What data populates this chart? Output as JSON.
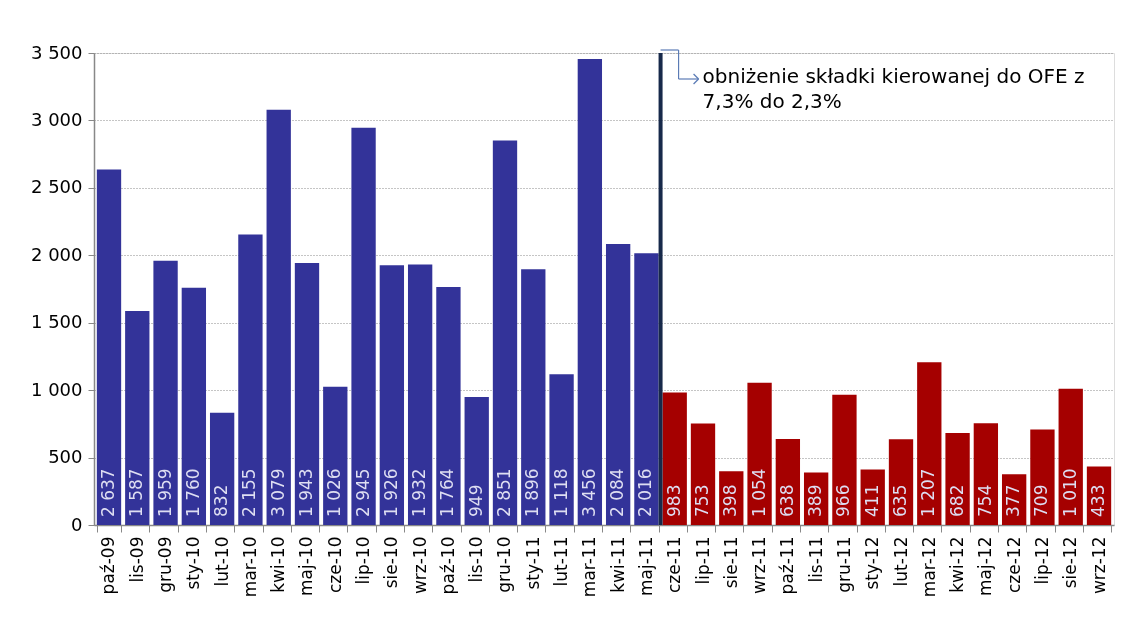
{
  "chart_data": {
    "type": "bar",
    "categories": [
      "paź-09",
      "lis-09",
      "gru-09",
      "sty-10",
      "lut-10",
      "mar-10",
      "kwi-10",
      "maj-10",
      "cze-10",
      "lip-10",
      "sie-10",
      "wrz-10",
      "paź-10",
      "lis-10",
      "gru-10",
      "sty-11",
      "lut-11",
      "mar-11",
      "kwi-11",
      "maj-11",
      "cze-11",
      "lip-11",
      "sie-11",
      "wrz-11",
      "paź-11",
      "lis-11",
      "gru-11",
      "sty-12",
      "lut-12",
      "mar-12",
      "kwi-12",
      "maj-12",
      "cze-12",
      "lip-12",
      "sie-12",
      "wrz-12"
    ],
    "values": [
      2637,
      1587,
      1959,
      1760,
      832,
      2155,
      3079,
      1943,
      1026,
      2945,
      1926,
      1932,
      1764,
      949,
      2851,
      1896,
      1118,
      3456,
      2084,
      2016,
      983,
      753,
      398,
      1054,
      638,
      389,
      966,
      411,
      635,
      1207,
      682,
      754,
      377,
      709,
      1010,
      433
    ],
    "colors": [
      "#333399",
      "#333399",
      "#333399",
      "#333399",
      "#333399",
      "#333399",
      "#333399",
      "#333399",
      "#333399",
      "#333399",
      "#333399",
      "#333399",
      "#333399",
      "#333399",
      "#333399",
      "#333399",
      "#333399",
      "#333399",
      "#333399",
      "#333399",
      "#a50000",
      "#a50000",
      "#a50000",
      "#a50000",
      "#a50000",
      "#a50000",
      "#a50000",
      "#a50000",
      "#a50000",
      "#a50000",
      "#a50000",
      "#a50000",
      "#a50000",
      "#a50000",
      "#a50000",
      "#a50000"
    ],
    "value_labels": [
      "2 637",
      "1 587",
      "1 959",
      "1 760",
      "832",
      "2 155",
      "3 079",
      "1 943",
      "1 026",
      "2 945",
      "1 926",
      "1 932",
      "1 764",
      "949",
      "2 851",
      "1 896",
      "1 118",
      "3 456",
      "2 084",
      "2 016",
      "983",
      "753",
      "398",
      "1 054",
      "638",
      "389",
      "966",
      "411",
      "635",
      "1 207",
      "682",
      "754",
      "377",
      "709",
      "1 010",
      "433"
    ],
    "ylim": [
      0,
      3500
    ],
    "yticks": [
      0,
      500,
      {
        "value": 1000,
        "label": "1 000"
      },
      {
        "value": 1500,
        "label": "1 500"
      },
      {
        "value": 2000,
        "label": "2 000"
      },
      {
        "value": 2500,
        "label": "2 500"
      },
      {
        "value": 3000,
        "label": "3 000"
      },
      {
        "value": 3500,
        "label": "3 500"
      }
    ],
    "grid": "y",
    "ref_lines": [
      {
        "axis": "x",
        "value": "cze-11",
        "label": "obniżenie składki kierowanej do OFE z\n7,3% do 2,3%",
        "color": "#17294a"
      }
    ]
  }
}
